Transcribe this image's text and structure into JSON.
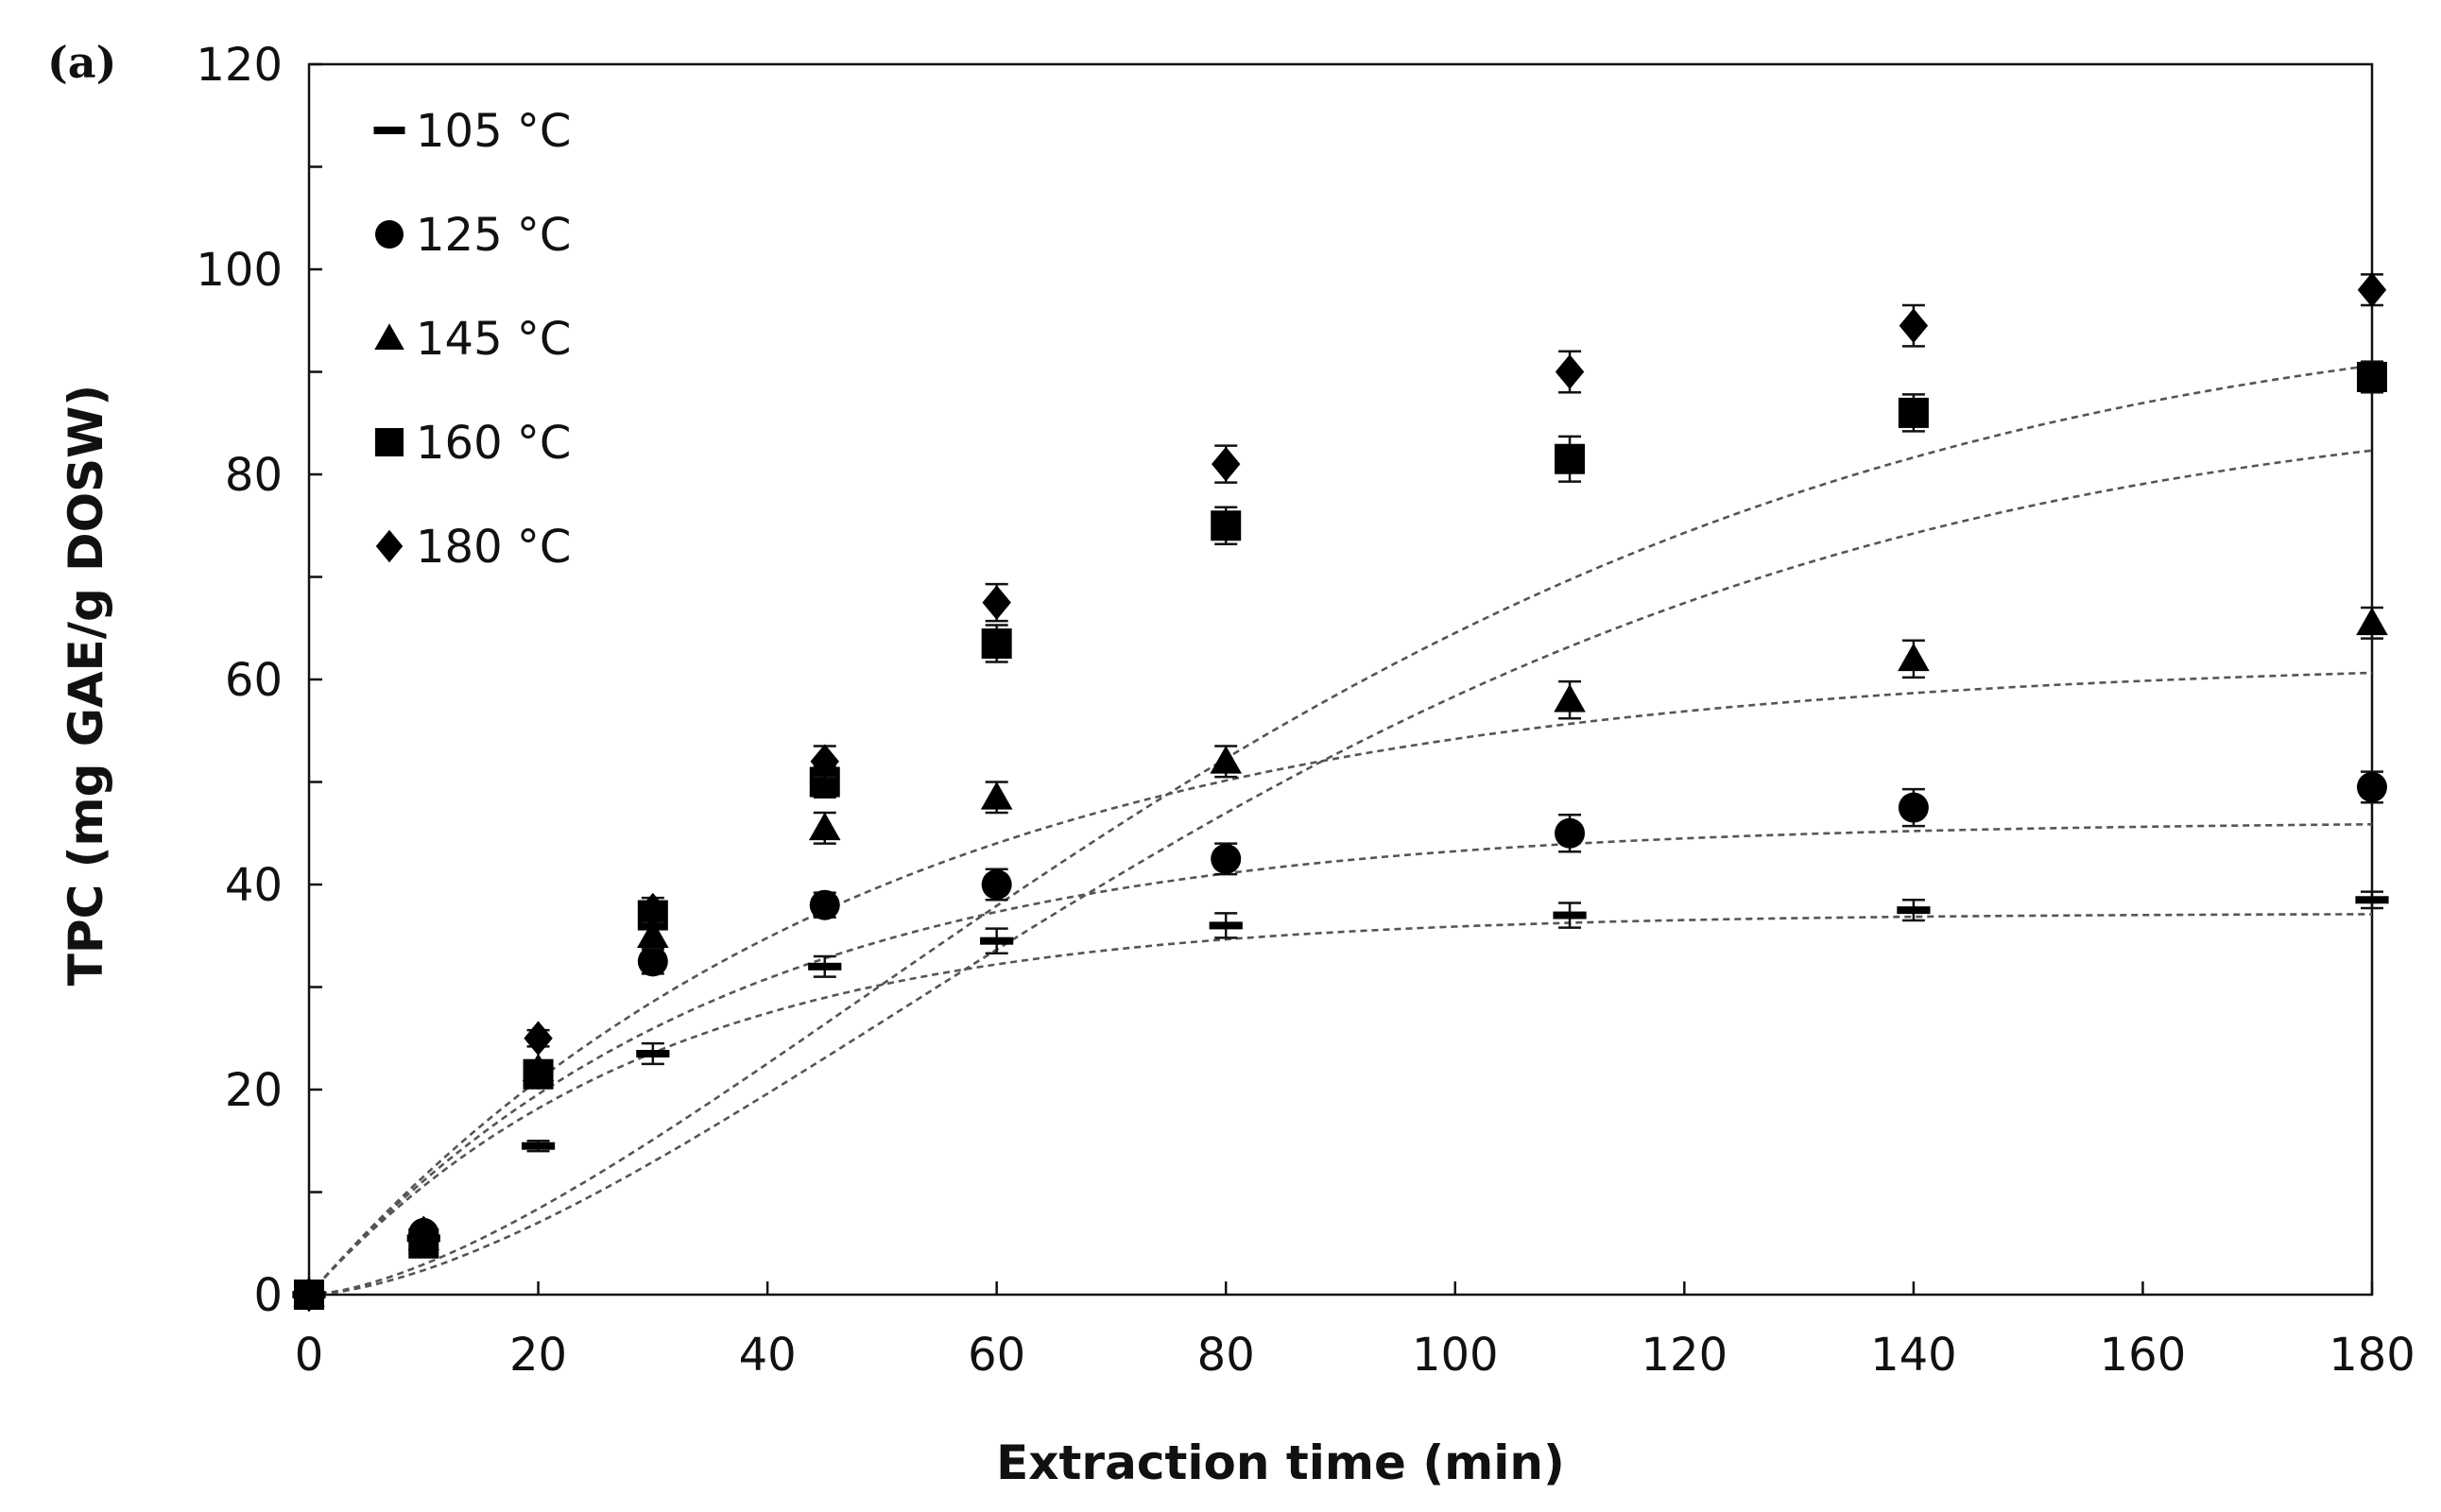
{
  "chart_data": {
    "type": "scatter",
    "panel_label": "(a)",
    "xlabel": "Extraction time (min)",
    "ylabel": "TPC (mg GAE/g DOSW)",
    "xlim": [
      0,
      180
    ],
    "ylim": [
      0,
      120
    ],
    "xticks": [
      0,
      20,
      40,
      60,
      80,
      100,
      120,
      140,
      160,
      180
    ],
    "yticks": [
      0,
      20,
      40,
      60,
      80,
      100,
      120
    ],
    "legend_position": "top-left",
    "x": [
      0,
      10,
      20,
      30,
      45,
      60,
      80,
      110,
      140,
      180
    ],
    "series": [
      {
        "name": "105 °C",
        "marker": "dash",
        "values": [
          0,
          5.5,
          14.5,
          23.5,
          32.0,
          34.5,
          36.0,
          37.0,
          37.5,
          38.5
        ],
        "errors": [
          0,
          0.5,
          0.5,
          1.0,
          1.0,
          1.2,
          1.2,
          1.2,
          1.0,
          0.8
        ],
        "fit": {
          "ymax": 37.2,
          "k": 0.0335
        }
      },
      {
        "name": "125 °C",
        "marker": "circle",
        "values": [
          0,
          6.0,
          21.5,
          32.5,
          38.0,
          40.0,
          42.5,
          45.0,
          47.5,
          49.5
        ],
        "errors": [
          0,
          0.5,
          0.8,
          1.2,
          1.2,
          1.5,
          1.5,
          1.8,
          1.8,
          1.5
        ],
        "fit": {
          "ymax": 46.2,
          "k": 0.0275
        }
      },
      {
        "name": "145 °C",
        "marker": "triangle",
        "values": [
          0,
          5.5,
          22.0,
          35.0,
          45.5,
          48.5,
          52.0,
          58.0,
          62.0,
          65.5
        ],
        "errors": [
          0,
          0.5,
          0.8,
          1.2,
          1.5,
          1.5,
          1.5,
          1.8,
          1.8,
          1.5
        ],
        "fit": {
          "ymax": 62.2,
          "k": 0.0205
        }
      },
      {
        "name": "160 °C",
        "marker": "square",
        "values": [
          0,
          5.0,
          21.5,
          37.0,
          50.0,
          63.5,
          75.0,
          81.5,
          86.0,
          89.5
        ],
        "errors": [
          0,
          0.5,
          0.8,
          1.2,
          1.5,
          1.8,
          1.8,
          2.2,
          1.8,
          1.5
        ],
        "fit": {
          "ymax": 87.6,
          "k": 0.0106,
          "n": 1.6
        }
      },
      {
        "name": "180 °C",
        "marker": "diamond",
        "values": [
          0,
          6.0,
          25.0,
          37.5,
          52.0,
          67.5,
          81.0,
          90.0,
          94.5,
          98.0
        ],
        "errors": [
          0,
          0.5,
          0.8,
          1.2,
          1.5,
          1.8,
          1.8,
          2.0,
          2.0,
          1.5
        ],
        "fit": {
          "ymax": 97.0,
          "k": 0.0106,
          "n": 1.55
        }
      }
    ]
  }
}
